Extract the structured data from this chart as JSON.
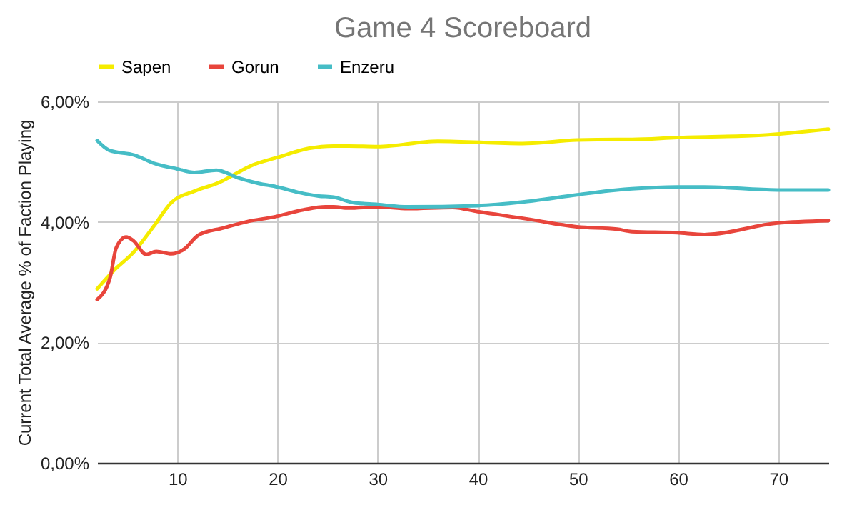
{
  "chart_data": {
    "type": "line",
    "title": "Game 4 Scoreboard",
    "ylabel": "Current Total Average % of Faction Playing",
    "xlim": [
      2,
      75
    ],
    "xticks": [
      10,
      20,
      30,
      40,
      50,
      60,
      70
    ],
    "ylim": [
      0,
      6
    ],
    "yticks": [
      {
        "value": 0,
        "label": "0,00%"
      },
      {
        "value": 2,
        "label": "2,00%"
      },
      {
        "value": 4,
        "label": "4,00%"
      },
      {
        "value": 6,
        "label": "6,00%"
      }
    ],
    "grid": true,
    "legend": "top",
    "marker": "none",
    "line_style": "solid",
    "series": [
      {
        "name": "Sapen",
        "color": "#f5ec00",
        "x": [
          2,
          3.7,
          5.6,
          7.7,
          9.4,
          11.7,
          14.1,
          17.6,
          20,
          23.1,
          25.6,
          27.1,
          30,
          36,
          44.5,
          49.9,
          53.9,
          55.4,
          59.9,
          68.4,
          75
        ],
        "values": [
          2.89,
          3.2,
          3.49,
          3.94,
          4.32,
          4.51,
          4.65,
          4.95,
          5.07,
          5.22,
          5.26,
          5.26,
          5.25,
          5.34,
          5.3,
          5.36,
          5.37,
          5.37,
          5.4,
          5.44,
          5.54
        ]
      },
      {
        "name": "Gorun",
        "color": "#e8453c",
        "x": [
          2,
          3.3,
          3.9,
          4.9,
          5.6,
          6.9,
          7.9,
          9.4,
          10.7,
          12.1,
          14.6,
          17.1,
          19.6,
          22.6,
          24.8,
          25.6,
          27.1,
          30,
          33,
          37.5,
          40,
          44.5,
          49.9,
          53.9,
          55.4,
          59.9,
          62.6,
          69.9,
          75
        ],
        "values": [
          2.71,
          3.08,
          3.57,
          3.75,
          3.69,
          3.46,
          3.51,
          3.47,
          3.55,
          3.78,
          3.9,
          4.01,
          4.08,
          4.2,
          4.25,
          4.25,
          4.23,
          4.25,
          4.22,
          4.24,
          4.17,
          4.06,
          3.92,
          3.88,
          3.84,
          3.82,
          3.79,
          3.98,
          4.02
        ]
      },
      {
        "name": "Enzeru",
        "color": "#46bdc6",
        "x": [
          2,
          3.2,
          5.7,
          7.9,
          10,
          11.7,
          13.9,
          16.1,
          18.1,
          20,
          22.1,
          24.1,
          25.6,
          27.6,
          30,
          33,
          40,
          44.5,
          49.9,
          53.9,
          55.4,
          59.9,
          62.6,
          69.9,
          75
        ],
        "values": [
          5.35,
          5.19,
          5.11,
          4.96,
          4.88,
          4.82,
          4.86,
          4.73,
          4.64,
          4.58,
          4.49,
          4.43,
          4.41,
          4.32,
          4.29,
          4.25,
          4.27,
          4.33,
          4.45,
          4.53,
          4.55,
          4.58,
          4.58,
          4.53,
          4.53
        ]
      }
    ]
  }
}
